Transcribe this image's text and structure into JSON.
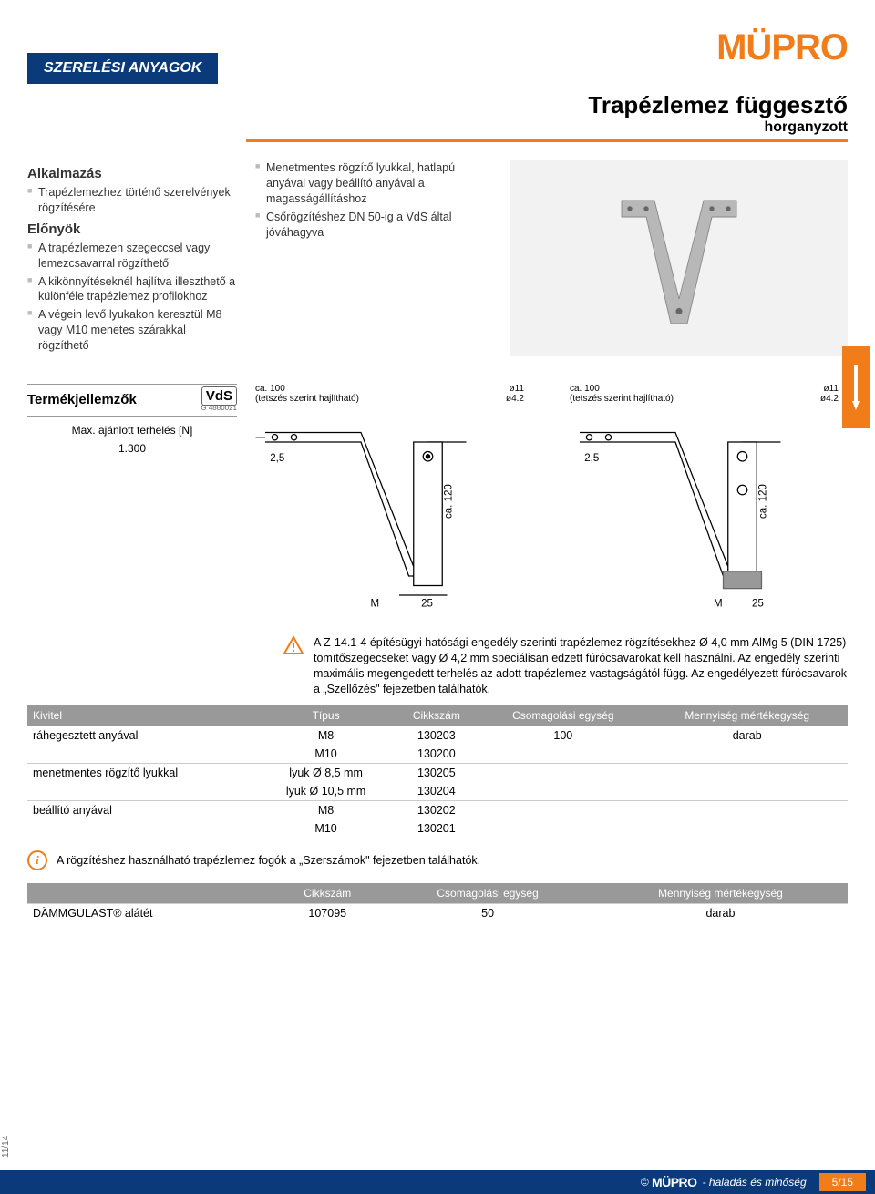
{
  "brand": "MÜPRO",
  "category_tab": "SZERELÉSI ANYAGOK",
  "title": "Trapézlemez függesztő",
  "subtitle": "horganyzott",
  "sections": {
    "app_h": "Alkalmazás",
    "app_items": [
      "Trapézlemezhez történő szerelvények rögzítésére"
    ],
    "adv_h": "Előnyök",
    "adv_items": [
      "A trapézlemezen szegeccsel vagy lemezcsavarral rögzíthető",
      "A kikönnyítéseknél hajlítva illeszthető a különféle trapézlemez profilokhoz",
      "A végein levő lyukakon keresztül M8 vagy M10 menetes szárakkal rögzíthető"
    ],
    "feat_items": [
      "Menetmentes rögzítő lyukkal, hatlapú anyával vagy beállító anyával a magasságállításhoz",
      "Csőrögzítéshez DN 50-ig a VdS által jóváhagyva"
    ]
  },
  "spec": {
    "heading": "Termékjellemzők",
    "vds": "VdS",
    "vds_code": "G 4880021",
    "row_label": "Max. ajánlott terhelés [N]",
    "row_value": "1.300"
  },
  "diagram": {
    "top_label": "ca. 100",
    "bend_label": "(tetszés szerint hajlítható)",
    "dia_11": "ø11",
    "dia_42": "ø4.2",
    "h_label": "ca. 120",
    "w25": "25",
    "r25": "2,5",
    "M": "M"
  },
  "warning_text": "A Z-14.1-4 építésügyi hatósági engedély szerinti trapézlemez rögzítésekhez Ø 4,0 mm AlMg 5 (DIN 1725) tömítőszegecseket vagy Ø 4,2 mm speciálisan edzett fúrócsavarokat kell használni. Az engedély szerinti maximális megengedett terhelés az adott trapézlemez vastagságától függ. Az engedélyezett fúrócsavarok a „Szellőzés\" fejezetben találhatók.",
  "table1": {
    "headers": [
      "Kivitel",
      "Típus",
      "Cikkszám",
      "Csomagolási egység",
      "Mennyiség mértékegység"
    ],
    "rows": [
      [
        "ráhegesztett anyával",
        "M8",
        "130203",
        "100",
        "darab"
      ],
      [
        "",
        "M10",
        "130200",
        "",
        ""
      ],
      [
        "menetmentes rögzítő lyukkal",
        "lyuk Ø  8,5 mm",
        "130205",
        "",
        ""
      ],
      [
        "",
        "lyuk Ø 10,5 mm",
        "130204",
        "",
        ""
      ],
      [
        "beállító anyával",
        "M8",
        "130202",
        "",
        ""
      ],
      [
        "",
        "M10",
        "130201",
        "",
        ""
      ]
    ]
  },
  "info_text": "A rögzítéshez használható trapézlemez fogók a „Szerszámok\" fejezetben találhatók.",
  "table2": {
    "headers": [
      "",
      "Cikkszám",
      "Csomagolási egység",
      "Mennyiség mértékegység"
    ],
    "rows": [
      [
        "DÄMMGULAST® alátét",
        "107095",
        "50",
        "darab"
      ]
    ]
  },
  "footer": {
    "copyright": "©",
    "brand": "MÜPRO",
    "tagline": "- haladás és minőség",
    "page": "5/15",
    "date": "11/14"
  },
  "colors": {
    "orange": "#f07d1a",
    "blue": "#0a3a7a",
    "grey_header": "#999999"
  }
}
